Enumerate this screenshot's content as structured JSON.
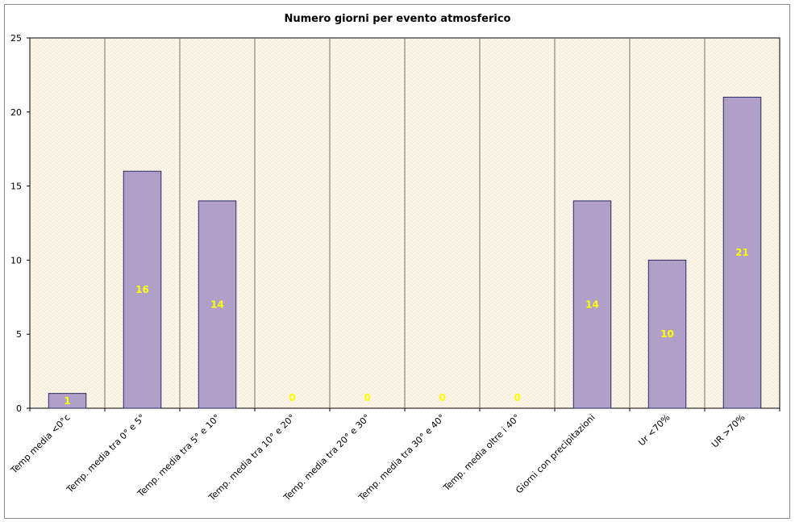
{
  "chart_data": {
    "type": "bar",
    "title": "Numero giorni per evento atmosferico",
    "xlabel": "",
    "ylabel": "",
    "categories": [
      "Temp media <0°c",
      "Temp. media tra 0° e 5°",
      "Temp. media tra 5° e 10°",
      "Temp. media tra 10° e 20°",
      "Temp. media tra 20° e 30°",
      "Temp. media tra 30° e 40°",
      "Temp. media oltre i 40°",
      "Giorni con precipitazioni",
      "Ur <70%",
      "UR >70%"
    ],
    "values": [
      1,
      16,
      14,
      0,
      0,
      0,
      0,
      14,
      10,
      21
    ],
    "ylim": [
      0,
      25
    ],
    "yticks": [
      "0",
      "5",
      "10",
      "15",
      "20",
      "25"
    ],
    "grid": "vertical separators between categories",
    "legend": "none",
    "colors": {
      "bar_fill": "#b0a0c8",
      "bar_stroke": "#2a2a66",
      "plot_background": "#fdf6e8",
      "data_label": "#ffff00",
      "separator": "#7a6a5a"
    }
  }
}
